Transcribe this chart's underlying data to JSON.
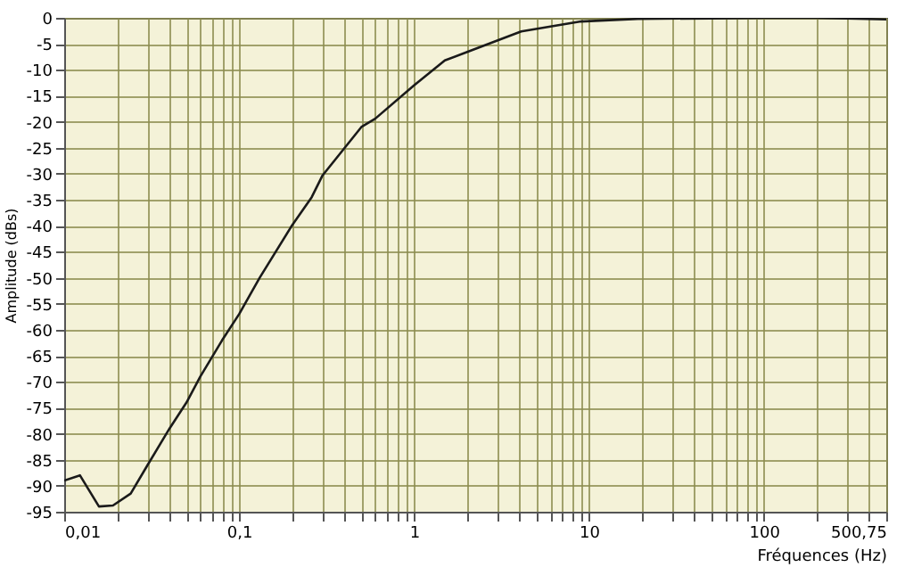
{
  "chart_data": {
    "type": "line",
    "xlabel": "Fréquences (Hz)",
    "ylabel": "Amplitude (dBs)",
    "log": "x",
    "grid": true,
    "marker": "none",
    "line_style": "solid",
    "x": [
      0.01,
      0.0123,
      0.0158,
      0.019,
      0.024,
      0.03,
      0.04,
      0.05,
      0.06,
      0.08,
      0.1,
      0.131,
      0.2,
      0.26,
      0.3,
      0.5,
      0.6,
      1,
      1.5,
      2,
      4.1,
      9,
      19,
      50,
      100,
      200,
      500.75
    ],
    "series": [
      {
        "color": "#1a1a1a",
        "values": [
          -89,
          -88,
          -94,
          -93.8,
          -91.5,
          -86,
          -79,
          -74,
          -69,
          -62,
          -57,
          -50,
          -40,
          -34.5,
          -30.3,
          -21,
          -19.4,
          -13,
          -8.2,
          -6.6,
          -2.6,
          -0.7,
          -0.2,
          -0.1,
          0,
          0,
          -0.3
        ]
      }
    ],
    "xlim": [
      0.01,
      500.75
    ],
    "ylim": [
      -95,
      0
    ],
    "xticks": [
      {
        "value": 0.01,
        "label": "0,01"
      },
      {
        "value": 0.02,
        "label": null
      },
      {
        "value": 0.03,
        "label": null
      },
      {
        "value": 0.04,
        "label": null
      },
      {
        "value": 0.05,
        "label": null
      },
      {
        "value": 0.06,
        "label": null
      },
      {
        "value": 0.07,
        "label": null
      },
      {
        "value": 0.08,
        "label": null
      },
      {
        "value": 0.09,
        "label": null
      },
      {
        "value": 0.1,
        "label": "0,1"
      },
      {
        "value": 0.2,
        "label": null
      },
      {
        "value": 0.3,
        "label": null
      },
      {
        "value": 0.4,
        "label": null
      },
      {
        "value": 0.5,
        "label": null
      },
      {
        "value": 0.6,
        "label": null
      },
      {
        "value": 0.7,
        "label": null
      },
      {
        "value": 0.8,
        "label": null
      },
      {
        "value": 0.9,
        "label": null
      },
      1,
      {
        "value": 2,
        "label": null
      },
      {
        "value": 3,
        "label": null
      },
      {
        "value": 4,
        "label": null
      },
      {
        "value": 5,
        "label": null
      },
      {
        "value": 6,
        "label": null
      },
      {
        "value": 7,
        "label": null
      },
      {
        "value": 8,
        "label": null
      },
      {
        "value": 9,
        "label": null
      },
      10,
      {
        "value": 20,
        "label": null
      },
      {
        "value": 30,
        "label": null
      },
      {
        "value": 40,
        "label": null
      },
      {
        "value": 50,
        "label": null
      },
      {
        "value": 60,
        "label": null
      },
      {
        "value": 70,
        "label": null
      },
      {
        "value": 80,
        "label": null
      },
      {
        "value": 90,
        "label": null
      },
      100,
      {
        "value": 200,
        "label": null
      },
      {
        "value": 300,
        "label": null
      },
      {
        "value": 400,
        "label": null
      },
      {
        "value": 500.75,
        "label": "500,75"
      }
    ],
    "yticks": [
      -95,
      -90,
      -85,
      -80,
      -75,
      -70,
      -65,
      -60,
      -55,
      -50,
      -45,
      -40,
      -35,
      -30,
      -25,
      -20,
      -15,
      -10,
      -5,
      0
    ]
  }
}
